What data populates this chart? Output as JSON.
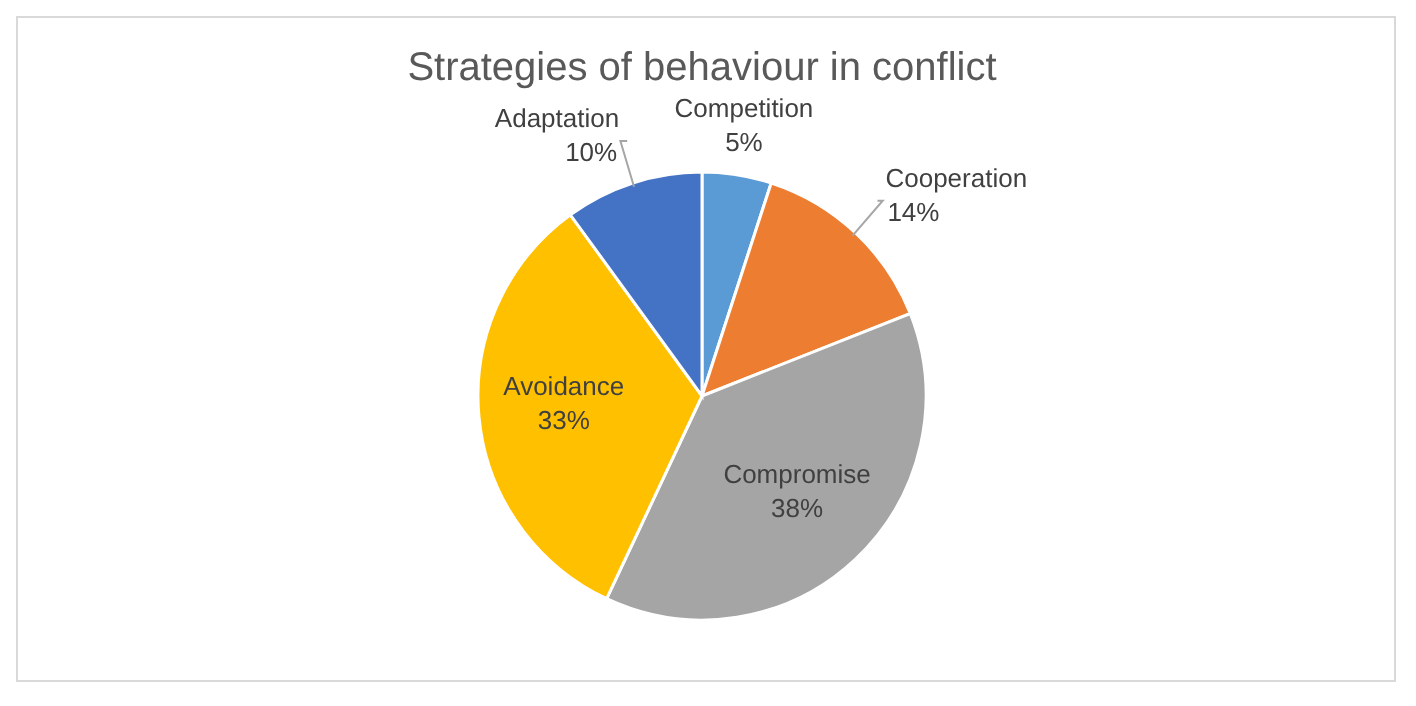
{
  "chart_data": {
    "type": "pie",
    "title": "Strategies of behaviour in conflict",
    "categories": [
      "Competition",
      "Cooperation",
      "Compromise",
      "Avoidance",
      "Adaptation"
    ],
    "values": [
      5,
      14,
      38,
      33,
      10
    ],
    "value_labels": [
      "5%",
      "14%",
      "38%",
      "33%",
      "10%"
    ],
    "colors": [
      "#5b9bd5",
      "#ed7d31",
      "#a5a5a5",
      "#ffc000",
      "#4472c4"
    ],
    "legend": false
  }
}
